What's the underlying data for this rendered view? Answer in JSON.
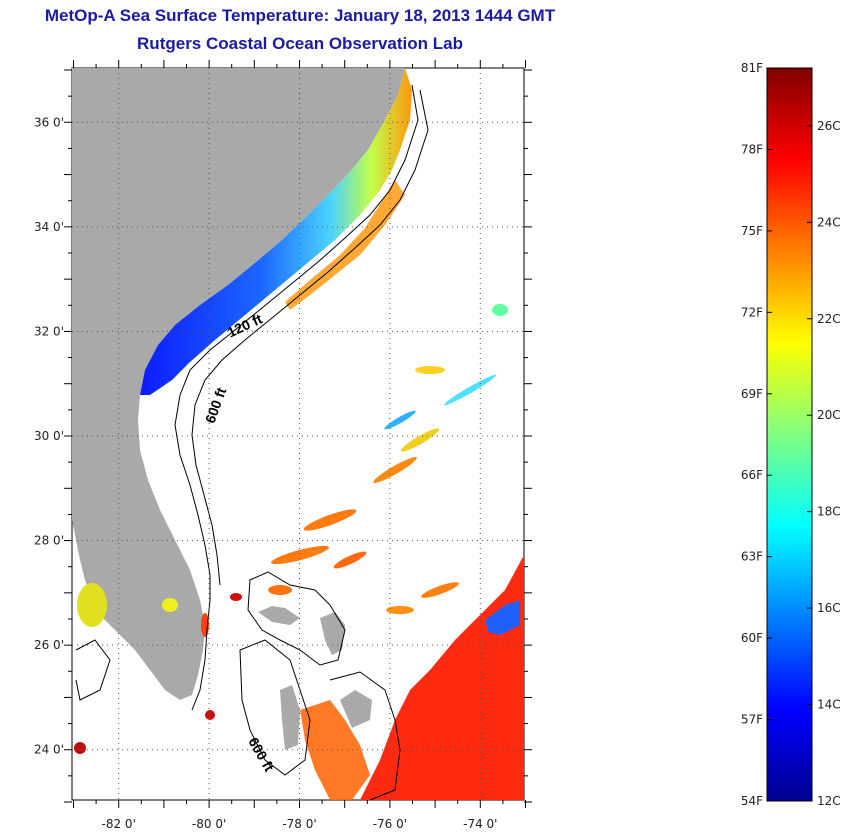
{
  "title": {
    "line1": "MetOp-A Sea Surface Temperature:  January 18, 2013 1444 GMT",
    "line2": "Rutgers Coastal Ocean Observation Lab"
  },
  "map": {
    "lat_range": [
      23,
      37
    ],
    "lon_range": [
      -83,
      -73
    ],
    "lat_ticks": [
      "36 0'",
      "34 0'",
      "32 0'",
      "30 0'",
      "28 0'",
      "26 0'",
      "24 0'"
    ],
    "lon_ticks": [
      "-82 0'",
      "-80 0'",
      "-78 0'",
      "-76 0'",
      "-74 0'"
    ],
    "contour_labels": [
      "120 ft",
      "600 ft",
      "600 ft"
    ],
    "land_color": "#a9a9a9",
    "grid": "dotted"
  },
  "colorbar": {
    "fahrenheit_labels": [
      "81F",
      "78F",
      "75F",
      "72F",
      "69F",
      "66F",
      "63F",
      "60F",
      "57F",
      "54F"
    ],
    "celsius_labels": [
      "26C",
      "24C",
      "22C",
      "20C",
      "18C",
      "16C",
      "14C",
      "12C"
    ],
    "colormap": "jet",
    "range_f": [
      54,
      81
    ],
    "range_c": [
      12,
      27.2
    ]
  }
}
